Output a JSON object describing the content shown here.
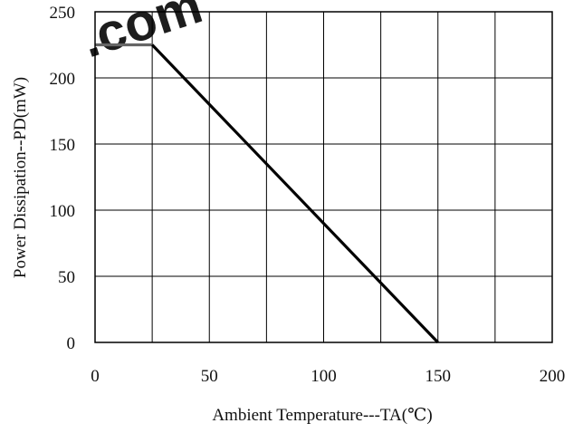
{
  "chart_data": {
    "type": "line",
    "title": "",
    "xlabel": "Ambient Temperature---TA(℃)",
    "ylabel": "Power Dissipation--PD(mW)",
    "xlim": [
      0,
      200
    ],
    "ylim": [
      0,
      250
    ],
    "x_ticks": [
      0,
      25,
      50,
      75,
      100,
      125,
      150,
      175,
      200
    ],
    "x_tick_labels": [
      "0",
      "50",
      "100",
      "150",
      "200"
    ],
    "x_tick_label_values": [
      0,
      50,
      100,
      150,
      200
    ],
    "y_ticks": [
      0,
      50,
      100,
      150,
      200,
      250
    ],
    "y_tick_labels": [
      "0",
      "50",
      "100",
      "150",
      "200",
      "250"
    ],
    "grid": true,
    "series": [
      {
        "x": [
          0,
          25,
          150
        ],
        "y": [
          225,
          225,
          0
        ],
        "color": "#000000",
        "flat_segment_color": "#666666"
      }
    ]
  },
  "watermark": {
    "text": ".com",
    "color": "#e8201c"
  }
}
